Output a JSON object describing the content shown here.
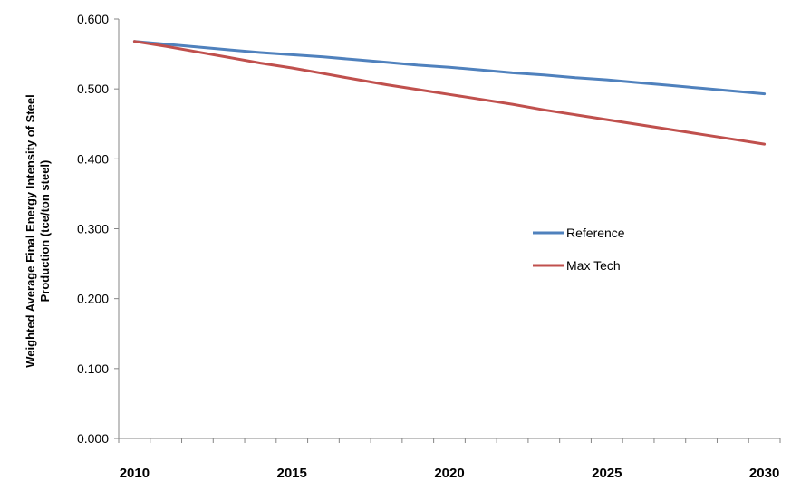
{
  "chart_data": {
    "type": "line",
    "title": "",
    "xlabel": "",
    "ylabel_lines": [
      "Weighted Average Final Energy Intensity of Steel",
      "Production (tce/ton steel)"
    ],
    "x": [
      2010,
      2011,
      2012,
      2013,
      2014,
      2015,
      2016,
      2017,
      2018,
      2019,
      2020,
      2021,
      2022,
      2023,
      2024,
      2025,
      2026,
      2027,
      2028,
      2029,
      2030
    ],
    "x_tick_labels": [
      "2010",
      "2015",
      "2020",
      "2025",
      "2030"
    ],
    "y_tick_labels": [
      "0.000",
      "0.100",
      "0.200",
      "0.300",
      "0.400",
      "0.500",
      "0.600"
    ],
    "ylim": [
      0,
      0.6
    ],
    "grid": false,
    "legend_position": "right-center",
    "series": [
      {
        "name": "Reference",
        "color": "#4f81bd",
        "values": [
          0.568,
          0.564,
          0.56,
          0.556,
          0.552,
          0.549,
          0.546,
          0.542,
          0.538,
          0.534,
          0.531,
          0.527,
          0.523,
          0.52,
          0.516,
          0.513,
          0.509,
          0.505,
          0.501,
          0.497,
          0.493
        ]
      },
      {
        "name": "Max Tech",
        "color": "#c0504d",
        "values": [
          0.568,
          0.561,
          0.553,
          0.545,
          0.537,
          0.53,
          0.522,
          0.514,
          0.506,
          0.499,
          0.492,
          0.485,
          0.478,
          0.47,
          0.463,
          0.456,
          0.449,
          0.442,
          0.435,
          0.428,
          0.421
        ]
      }
    ]
  }
}
